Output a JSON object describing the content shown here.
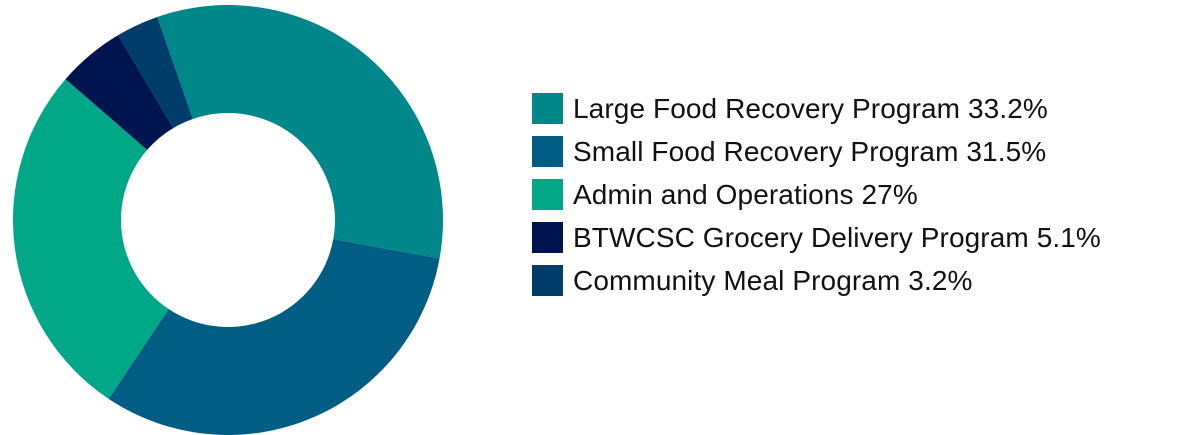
{
  "chart_data": {
    "type": "pie",
    "donut": true,
    "legend_position": "right",
    "slices": [
      {
        "label": "Large Food Recovery Program 33.2%",
        "value": 33.2,
        "color": "#00878A"
      },
      {
        "label": "Small Food Recovery Program 31.5%",
        "value": 31.5,
        "color": "#005E85"
      },
      {
        "label": "Admin and Operations 27%",
        "value": 27,
        "color": "#00A888"
      },
      {
        "label": "BTWCSC Grocery Delivery Program 5.1%",
        "value": 5.1,
        "color": "#00144F"
      },
      {
        "label": "Community Meal Program 3.2%",
        "value": 3.2,
        "color": "#003D6B"
      }
    ]
  }
}
